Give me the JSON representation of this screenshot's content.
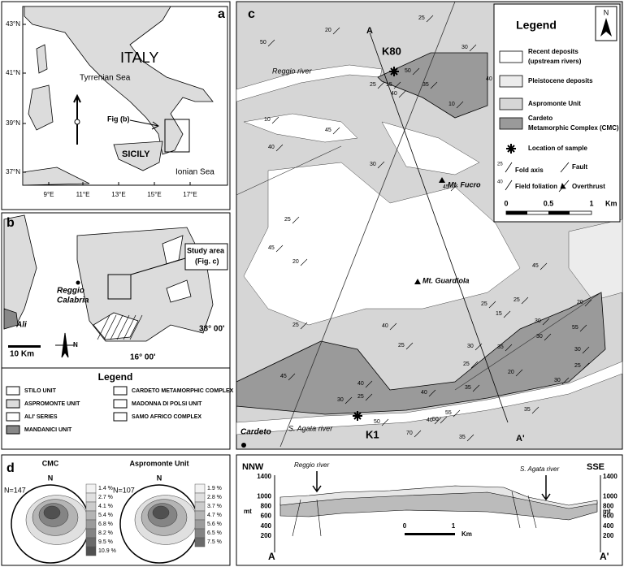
{
  "panel_a": {
    "label": "a",
    "lat_labels": [
      "43°N",
      "41°N",
      "39°N",
      "37°N"
    ],
    "lon_labels": [
      "9°E",
      "11°E",
      "13°E",
      "15°E",
      "17°E"
    ],
    "country": "ITALY",
    "sea_west": "Tyrrenian Sea",
    "fig_ref": "Fig (b)",
    "island": "SICILY",
    "sea_east": "Ionian Sea"
  },
  "panel_b": {
    "label": "b",
    "town": [
      "Reggio",
      "Calabria"
    ],
    "village": "Ali",
    "scale": "10 Km",
    "study_area": [
      "Study area",
      "(Fig. c)"
    ],
    "lat": "38° 00'",
    "lon": "16° 00'",
    "north": "N",
    "legend_title": "Legend",
    "legend_items": [
      "STILO UNIT",
      "ASPROMONTE UNIT",
      "ALI' SERIES",
      "MANDANICI UNIT",
      "CARDETO METAMORPHIC COMPLEX",
      "MADONNA DI POLSI UNIT",
      "SAMO AFRICO COMPLEX"
    ]
  },
  "panel_c": {
    "label": "c",
    "section_start": "A",
    "section_end": "A'",
    "samples": [
      "K80",
      "K1"
    ],
    "rivers": [
      "Reggio river",
      "S. Agata river"
    ],
    "peaks": [
      "Mt. Fucro",
      "Mt. Guardiola"
    ],
    "village": "Cardeto",
    "legend": {
      "title": "Legend",
      "north": "N",
      "items": [
        [
          "Recent deposits",
          "(upstream rivers)"
        ],
        [
          "Pleistocene deposits"
        ],
        [
          "Aspromonte Unit"
        ],
        [
          "Cardeto",
          "Metamorphic Complex (CMC)"
        ],
        [
          "Location of sample"
        ]
      ],
      "symbols": {
        "fold_value": 25,
        "fold": "Fold axis",
        "fault": "Fault",
        "foliation_value": 40,
        "foliation": "Field foliation",
        "overthrust": "Overthrust"
      },
      "scale": [
        "0",
        "0.5",
        "1",
        "Km"
      ]
    },
    "dips": [
      50,
      20,
      25,
      30,
      50,
      25,
      40,
      15,
      35,
      40,
      10,
      10,
      40,
      45,
      30,
      45,
      25,
      45,
      20,
      45,
      25,
      15,
      20,
      25,
      30,
      25,
      25,
      40,
      30,
      35,
      30,
      55,
      30,
      25,
      40,
      25,
      30,
      45,
      40,
      25,
      20,
      35,
      40,
      55,
      35,
      35,
      70,
      50,
      50,
      30
    ]
  },
  "panel_d": {
    "label": "d",
    "nets": [
      {
        "title": "CMC",
        "north": "N",
        "count": "N=147",
        "scale": [
          "1.4 %",
          "2.7 %",
          "4.1 %",
          "5.4 %",
          "6.8 %",
          "8.2 %",
          "9.5 %",
          "10.9 %"
        ]
      },
      {
        "title": "Aspromonte Unit",
        "north": "N",
        "count": "N=107",
        "scale": [
          "1.9 %",
          "2.8 %",
          "3.7 %",
          "4.7 %",
          "5.6 %",
          "6.5 %",
          "7.5 %"
        ]
      }
    ]
  },
  "section": {
    "left": "NNW",
    "right": "SSE",
    "rivers": [
      "Reggio river",
      "S. Agata river"
    ],
    "elevations": [
      1400,
      1000,
      800,
      600,
      400,
      200
    ],
    "unit": "mt",
    "start": "A",
    "end": "A'",
    "scale": [
      "0",
      "1",
      "Km"
    ]
  }
}
